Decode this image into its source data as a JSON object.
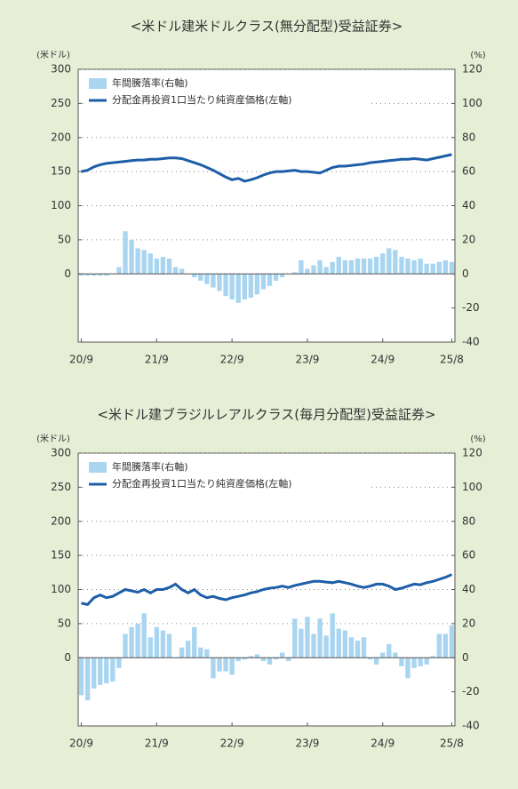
{
  "chart_data": [
    {
      "type": "bar",
      "title": "<米ドル建米ドルクラス(無分配型)受益証券>",
      "y_label": "(米ドル)",
      "y2_label": "(%)",
      "legend": "upper left",
      "grid": true,
      "categories": [
        "20/9",
        null,
        null,
        null,
        null,
        null,
        null,
        null,
        null,
        null,
        null,
        null,
        "21/9",
        null,
        null,
        null,
        null,
        null,
        null,
        null,
        null,
        null,
        null,
        null,
        "22/9",
        null,
        null,
        null,
        null,
        null,
        null,
        null,
        null,
        null,
        null,
        null,
        "23/9",
        null,
        null,
        null,
        null,
        null,
        null,
        null,
        null,
        null,
        null,
        null,
        "24/9",
        null,
        null,
        null,
        null,
        null,
        null,
        null,
        null,
        null,
        null,
        "25/8"
      ],
      "ylim": [
        -100,
        300
      ],
      "yticks": [
        0,
        50,
        100,
        150,
        200,
        250,
        300
      ],
      "y2lim": [
        -40,
        120
      ],
      "y2ticks": [
        -40,
        -20,
        0,
        20,
        40,
        60,
        80,
        100,
        120
      ],
      "series": [
        {
          "name": "年間騰落率(右軸)",
          "type": "bar",
          "axis": "y2",
          "color": "#a9d5f0",
          "values": [
            -1,
            -1,
            -1,
            -1,
            -1,
            0,
            4,
            25,
            20,
            15,
            14,
            12,
            9,
            10,
            9,
            4,
            3,
            0,
            -2,
            -4,
            -6,
            -8,
            -10,
            -13,
            -15,
            -17,
            -15,
            -14,
            -12,
            -9,
            -7,
            -4,
            -2,
            0,
            1,
            8,
            3,
            5,
            8,
            4,
            7,
            10,
            8,
            8,
            9,
            9,
            9,
            10,
            12,
            15,
            14,
            10,
            9,
            8,
            9,
            6,
            6,
            7,
            8,
            7
          ]
        },
        {
          "name": "分配金再投資1口当たり純資産価格(左軸)",
          "type": "line",
          "color": "#1d5ea8",
          "values": [
            150,
            152,
            157,
            160,
            162,
            163,
            164,
            165,
            166,
            167,
            167,
            168,
            168,
            169,
            170,
            170,
            169,
            166,
            163,
            160,
            156,
            152,
            147,
            142,
            138,
            140,
            136,
            138,
            141,
            145,
            148,
            150,
            150,
            151,
            152,
            150,
            150,
            149,
            148,
            152,
            156,
            158,
            158,
            159,
            160,
            161,
            163,
            164,
            165,
            166,
            167,
            168,
            168,
            169,
            168,
            167,
            169,
            171,
            173,
            175
          ]
        }
      ]
    },
    {
      "type": "bar",
      "title": "<米ドル建ブラジルレアルクラス(毎月分配型)受益証券>",
      "y_label": "(米ドル)",
      "y2_label": "(%)",
      "legend": "upper left",
      "grid": true,
      "categories": [
        "20/9",
        null,
        null,
        null,
        null,
        null,
        null,
        null,
        null,
        null,
        null,
        null,
        "21/9",
        null,
        null,
        null,
        null,
        null,
        null,
        null,
        null,
        null,
        null,
        null,
        "22/9",
        null,
        null,
        null,
        null,
        null,
        null,
        null,
        null,
        null,
        null,
        null,
        "23/9",
        null,
        null,
        null,
        null,
        null,
        null,
        null,
        null,
        null,
        null,
        null,
        "24/9",
        null,
        null,
        null,
        null,
        null,
        null,
        null,
        null,
        null,
        null,
        "25/8"
      ],
      "ylim": [
        -100,
        300
      ],
      "yticks": [
        0,
        50,
        100,
        150,
        200,
        250,
        300
      ],
      "y2lim": [
        -40,
        120
      ],
      "y2ticks": [
        -40,
        -20,
        0,
        20,
        40,
        60,
        80,
        100,
        120
      ],
      "series": [
        {
          "name": "年間騰落率(右軸)",
          "type": "bar",
          "axis": "y2",
          "color": "#a9d5f0",
          "values": [
            -22,
            -25,
            -18,
            -16,
            -15,
            -14,
            -6,
            14,
            18,
            20,
            26,
            12,
            18,
            16,
            14,
            0,
            6,
            10,
            18,
            6,
            5,
            -12,
            -8,
            -8,
            -10,
            -2,
            -1,
            1,
            2,
            -2,
            -4,
            -1,
            3,
            -2,
            23,
            17,
            24,
            14,
            23,
            13,
            26,
            17,
            16,
            12,
            10,
            12,
            -1,
            -4,
            3,
            8,
            3,
            -5,
            -12,
            -6,
            -5,
            -4,
            1,
            14,
            14,
            19
          ]
        },
        {
          "name": "分配金再投資1口当たり純資産価格(左軸)",
          "type": "line",
          "color": "#1d5ea8",
          "values": [
            80,
            78,
            88,
            92,
            88,
            90,
            95,
            100,
            98,
            96,
            100,
            95,
            100,
            100,
            103,
            108,
            100,
            95,
            100,
            92,
            88,
            90,
            87,
            85,
            88,
            90,
            92,
            95,
            97,
            100,
            102,
            103,
            105,
            103,
            106,
            108,
            110,
            112,
            112,
            111,
            110,
            112,
            110,
            108,
            105,
            103,
            105,
            108,
            108,
            105,
            100,
            102,
            105,
            108,
            107,
            110,
            112,
            115,
            118,
            122
          ]
        }
      ]
    }
  ]
}
